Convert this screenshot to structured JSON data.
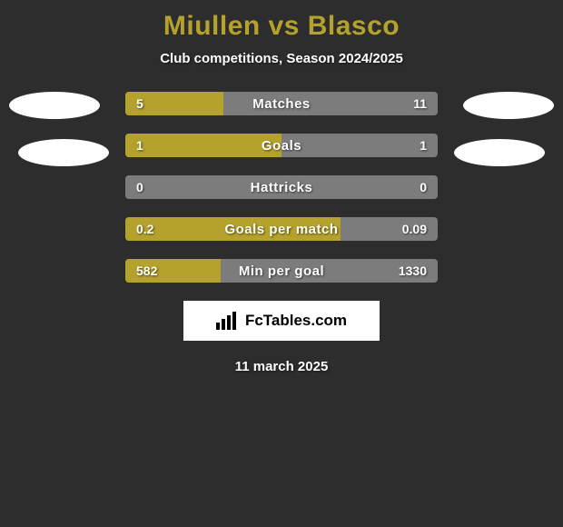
{
  "background_color": "#2d2d2d",
  "title_color": "#b5a22c",
  "bar_bg_color": "#7c7c7c",
  "bar_fill_color": "#b5a22c",
  "header": {
    "title": "Miullen vs Blasco",
    "subtitle": "Club competitions, Season 2024/2025"
  },
  "rows": [
    {
      "label": "Matches",
      "left_value": "5",
      "right_value": "11",
      "fill_pct": 31.25
    },
    {
      "label": "Goals",
      "left_value": "1",
      "right_value": "1",
      "fill_pct": 50.0
    },
    {
      "label": "Hattricks",
      "left_value": "0",
      "right_value": "0",
      "fill_pct": 0.0
    },
    {
      "label": "Goals per match",
      "left_value": "0.2",
      "right_value": "0.09",
      "fill_pct": 68.97
    },
    {
      "label": "Min per goal",
      "left_value": "582",
      "right_value": "1330",
      "fill_pct": 30.44
    }
  ],
  "brand": {
    "text": "FcTables.com"
  },
  "footer": {
    "date": "11 march 2025"
  }
}
